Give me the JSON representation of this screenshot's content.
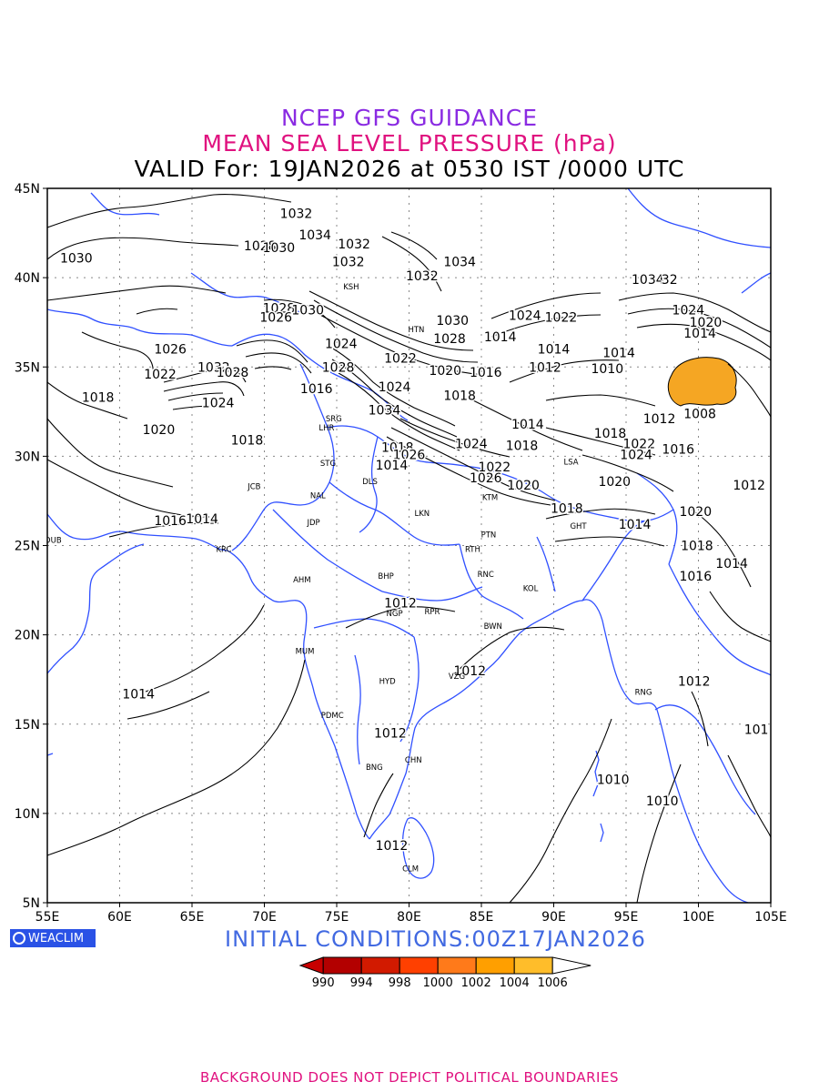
{
  "titles": {
    "line1": "NCEP GFS GUIDANCE",
    "line2": "MEAN SEA LEVEL PRESSURE (hPa)",
    "line3": "VALID For: 19JAN2026 at 0530 IST /0000 UTC"
  },
  "colors": {
    "line1": "#8a2be2",
    "line2": "#e0117f",
    "line3": "#000000",
    "initial": "#4169e1",
    "footer": "#e0117f",
    "logo_bg": "#2a52e6",
    "coast": "#3050ff",
    "contour": "#000000",
    "low_fill": "#f5a623"
  },
  "logo": {
    "text": "WEACLIM",
    "icon": "globe-icon"
  },
  "initial_conditions": "INITIAL  CONDITIONS:00Z17JAN2026",
  "footer": "BACKGROUND DOES NOT DEPICT POLITICAL BOUNDARIES",
  "map": {
    "lon_range": [
      55,
      105
    ],
    "lat_range": [
      5,
      45
    ],
    "lon_labels": [
      "55E",
      "60E",
      "65E",
      "70E",
      "75E",
      "80E",
      "85E",
      "90E",
      "95E",
      "100E",
      "105E"
    ],
    "lat_labels": [
      "45N",
      "40N",
      "35N",
      "30N",
      "25N",
      "20N",
      "15N",
      "10N",
      "5N"
    ],
    "stations": [
      {
        "code": "KSH",
        "lon": 76.0,
        "lat": 39.5
      },
      {
        "code": "HTN",
        "lon": 80.5,
        "lat": 37.1
      },
      {
        "code": "LSA",
        "lon": 91.2,
        "lat": 29.7
      },
      {
        "code": "SRG",
        "lon": 74.8,
        "lat": 32.1
      },
      {
        "code": "LHR",
        "lon": 74.3,
        "lat": 31.6
      },
      {
        "code": "STG",
        "lon": 74.4,
        "lat": 29.6
      },
      {
        "code": "DLS",
        "lon": 77.3,
        "lat": 28.6
      },
      {
        "code": "JCB",
        "lon": 69.3,
        "lat": 28.3
      },
      {
        "code": "NAL",
        "lon": 73.7,
        "lat": 27.8
      },
      {
        "code": "JDP",
        "lon": 73.4,
        "lat": 26.3
      },
      {
        "code": "LKN",
        "lon": 80.9,
        "lat": 26.8
      },
      {
        "code": "PTN",
        "lon": 85.5,
        "lat": 25.6
      },
      {
        "code": "KTM",
        "lon": 85.6,
        "lat": 27.7
      },
      {
        "code": "GHT",
        "lon": 91.7,
        "lat": 26.1
      },
      {
        "code": "DUB",
        "lon": 55.4,
        "lat": 25.3
      },
      {
        "code": "KRC",
        "lon": 67.2,
        "lat": 24.8
      },
      {
        "code": "AHM",
        "lon": 72.6,
        "lat": 23.1
      },
      {
        "code": "BHP",
        "lon": 78.4,
        "lat": 23.3
      },
      {
        "code": "RTH",
        "lon": 84.4,
        "lat": 24.8
      },
      {
        "code": "RNC",
        "lon": 85.3,
        "lat": 23.4
      },
      {
        "code": "KOL",
        "lon": 88.4,
        "lat": 22.6
      },
      {
        "code": "NGP",
        "lon": 79.0,
        "lat": 21.2
      },
      {
        "code": "RPR",
        "lon": 81.6,
        "lat": 21.3
      },
      {
        "code": "BWN",
        "lon": 85.8,
        "lat": 20.5
      },
      {
        "code": "MUM",
        "lon": 72.8,
        "lat": 19.1
      },
      {
        "code": "HYD",
        "lon": 78.5,
        "lat": 17.4
      },
      {
        "code": "VZG",
        "lon": 83.3,
        "lat": 17.7
      },
      {
        "code": "RNG",
        "lon": 96.2,
        "lat": 16.8
      },
      {
        "code": "PDMC",
        "lon": 74.7,
        "lat": 15.5
      },
      {
        "code": "CHN",
        "lon": 80.3,
        "lat": 13.0
      },
      {
        "code": "BNG",
        "lon": 77.6,
        "lat": 12.6
      },
      {
        "code": "CLM",
        "lon": 80.1,
        "lat": 6.9
      }
    ],
    "contour_labels": [
      {
        "text": "1032",
        "lon": 72.2,
        "lat": 43.6
      },
      {
        "text": "1034",
        "lon": 73.5,
        "lat": 42.4
      },
      {
        "text": "1032",
        "lon": 76.2,
        "lat": 41.9
      },
      {
        "text": "1028",
        "lon": 69.7,
        "lat": 41.8
      },
      {
        "text": "1030",
        "lon": 71.0,
        "lat": 41.7
      },
      {
        "text": "1030",
        "lon": 57.0,
        "lat": 41.1
      },
      {
        "text": "1032",
        "lon": 75.8,
        "lat": 40.9
      },
      {
        "text": "1034",
        "lon": 83.5,
        "lat": 40.9
      },
      {
        "text": "1032",
        "lon": 80.9,
        "lat": 40.1
      },
      {
        "text": "1034",
        "lon": 96.5,
        "lat": 39.9
      },
      {
        "text": "32",
        "lon": 98.0,
        "lat": 39.9
      },
      {
        "text": "1028",
        "lon": 71.0,
        "lat": 38.3
      },
      {
        "text": "1030",
        "lon": 73.0,
        "lat": 38.2
      },
      {
        "text": "1026",
        "lon": 70.8,
        "lat": 37.8
      },
      {
        "text": "1024",
        "lon": 88.0,
        "lat": 37.9
      },
      {
        "text": "1022",
        "lon": 90.5,
        "lat": 37.8
      },
      {
        "text": "1030",
        "lon": 83.0,
        "lat": 37.6
      },
      {
        "text": "1024",
        "lon": 99.3,
        "lat": 38.2
      },
      {
        "text": "1020",
        "lon": 100.5,
        "lat": 37.5
      },
      {
        "text": "1014",
        "lon": 100.1,
        "lat": 36.9
      },
      {
        "text": "1028",
        "lon": 82.8,
        "lat": 36.6
      },
      {
        "text": "1014",
        "lon": 86.3,
        "lat": 36.7
      },
      {
        "text": "1024",
        "lon": 75.3,
        "lat": 36.3
      },
      {
        "text": "1026",
        "lon": 63.5,
        "lat": 36.0
      },
      {
        "text": "1014",
        "lon": 90.0,
        "lat": 36.0
      },
      {
        "text": "1014",
        "lon": 94.5,
        "lat": 35.8
      },
      {
        "text": "1022",
        "lon": 79.4,
        "lat": 35.5
      },
      {
        "text": "1032",
        "lon": 66.5,
        "lat": 35.0
      },
      {
        "text": "1028",
        "lon": 75.1,
        "lat": 35.0
      },
      {
        "text": "1012",
        "lon": 89.4,
        "lat": 35.0
      },
      {
        "text": "1010",
        "lon": 93.7,
        "lat": 34.9
      },
      {
        "text": "1022",
        "lon": 62.8,
        "lat": 34.6
      },
      {
        "text": "1028",
        "lon": 67.8,
        "lat": 34.7
      },
      {
        "text": "1020",
        "lon": 82.5,
        "lat": 34.8
      },
      {
        "text": "1016",
        "lon": 85.3,
        "lat": 34.7
      },
      {
        "text": "1016",
        "lon": 73.6,
        "lat": 33.8
      },
      {
        "text": "1024",
        "lon": 79.0,
        "lat": 33.9
      },
      {
        "text": "1018",
        "lon": 58.5,
        "lat": 33.3
      },
      {
        "text": "1018",
        "lon": 83.5,
        "lat": 33.4
      },
      {
        "text": "1024",
        "lon": 66.8,
        "lat": 33.0
      },
      {
        "text": "1034",
        "lon": 78.3,
        "lat": 32.6
      },
      {
        "text": "1008",
        "lon": 100.1,
        "lat": 32.4
      },
      {
        "text": "1012",
        "lon": 97.3,
        "lat": 32.1
      },
      {
        "text": "1020",
        "lon": 62.7,
        "lat": 31.5
      },
      {
        "text": "1014",
        "lon": 88.2,
        "lat": 31.8
      },
      {
        "text": "1018",
        "lon": 68.8,
        "lat": 30.9
      },
      {
        "text": "1018",
        "lon": 93.9,
        "lat": 31.3
      },
      {
        "text": "1018",
        "lon": 79.2,
        "lat": 30.5
      },
      {
        "text": "1024",
        "lon": 84.3,
        "lat": 30.7
      },
      {
        "text": "1018",
        "lon": 87.8,
        "lat": 30.6
      },
      {
        "text": "1022",
        "lon": 95.9,
        "lat": 30.7
      },
      {
        "text": "1016",
        "lon": 98.6,
        "lat": 30.4
      },
      {
        "text": "1026",
        "lon": 80.0,
        "lat": 30.1
      },
      {
        "text": "1024",
        "lon": 95.7,
        "lat": 30.1
      },
      {
        "text": "1014",
        "lon": 78.8,
        "lat": 29.5
      },
      {
        "text": "1022",
        "lon": 85.9,
        "lat": 29.4
      },
      {
        "text": "1026",
        "lon": 85.3,
        "lat": 28.8
      },
      {
        "text": "1020",
        "lon": 87.9,
        "lat": 28.4
      },
      {
        "text": "1020",
        "lon": 94.2,
        "lat": 28.6
      },
      {
        "text": "1012",
        "lon": 103.5,
        "lat": 28.4
      },
      {
        "text": "1020",
        "lon": 99.8,
        "lat": 26.9
      },
      {
        "text": "1018",
        "lon": 90.9,
        "lat": 27.1
      },
      {
        "text": "1016",
        "lon": 63.5,
        "lat": 26.4
      },
      {
        "text": "1014",
        "lon": 65.7,
        "lat": 26.5
      },
      {
        "text": "1014",
        "lon": 95.6,
        "lat": 26.2
      },
      {
        "text": "1018",
        "lon": 99.9,
        "lat": 25.0
      },
      {
        "text": "1014",
        "lon": 102.3,
        "lat": 24.0
      },
      {
        "text": "1016",
        "lon": 99.8,
        "lat": 23.3
      },
      {
        "text": "1012",
        "lon": 79.4,
        "lat": 21.8
      },
      {
        "text": "1012",
        "lon": 84.2,
        "lat": 18.0
      },
      {
        "text": "1012",
        "lon": 99.7,
        "lat": 17.4
      },
      {
        "text": "1014",
        "lon": 61.3,
        "lat": 16.7
      },
      {
        "text": "1012",
        "lon": 78.7,
        "lat": 14.5
      },
      {
        "text": "101",
        "lon": 104.0,
        "lat": 14.7
      },
      {
        "text": "1010",
        "lon": 94.1,
        "lat": 11.9
      },
      {
        "text": "1010",
        "lon": 97.5,
        "lat": 10.7
      },
      {
        "text": "1012",
        "lon": 78.8,
        "lat": 8.2
      }
    ]
  },
  "legend": {
    "labels": [
      "990",
      "994",
      "998",
      "1000",
      "1002",
      "1004",
      "1006"
    ],
    "colors": [
      "#c80000",
      "#b30000",
      "#d21a00",
      "#ff4000",
      "#ff7a1a",
      "#ff9f00",
      "#ffbd2a",
      "#ffffff"
    ]
  }
}
